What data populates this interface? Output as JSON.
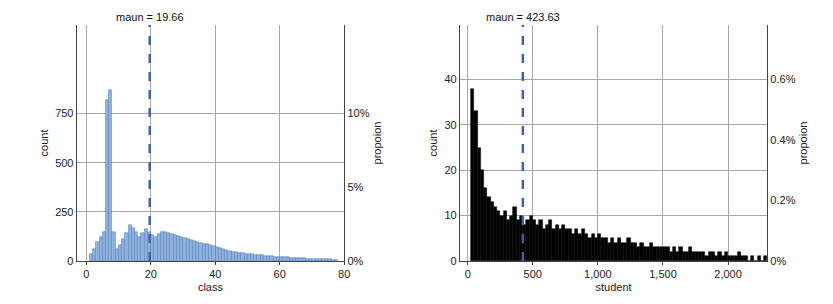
{
  "chart_data": [
    {
      "type": "histogram",
      "xlabel": "class",
      "ylabel": "count",
      "y2label": "propoion",
      "bins": [
        1,
        2,
        3,
        4,
        5,
        6,
        7,
        8,
        9,
        10,
        11,
        12,
        13,
        14,
        15,
        16,
        17,
        18,
        19,
        20,
        21,
        22,
        23,
        24,
        25,
        26,
        27,
        28,
        29,
        30,
        31,
        32,
        33,
        34,
        35,
        36,
        37,
        38,
        39,
        40,
        41,
        42,
        43,
        44,
        45,
        46,
        47,
        48,
        49,
        50,
        51,
        52,
        53,
        54,
        55,
        56,
        57,
        58,
        59,
        60,
        61,
        62,
        63,
        64,
        65,
        66,
        67,
        68,
        69,
        70,
        71,
        72,
        73,
        74,
        75,
        76,
        77,
        78
      ],
      "counts": [
        35,
        60,
        95,
        120,
        145,
        820,
        870,
        150,
        60,
        80,
        110,
        140,
        185,
        170,
        150,
        120,
        140,
        165,
        150,
        130,
        120,
        135,
        150,
        145,
        140,
        135,
        130,
        125,
        120,
        118,
        112,
        108,
        100,
        95,
        92,
        88,
        85,
        80,
        78,
        72,
        68,
        62,
        58,
        52,
        48,
        45,
        42,
        40,
        38,
        36,
        34,
        32,
        30,
        28,
        26,
        25,
        24,
        22,
        21,
        20,
        19,
        18,
        17,
        16,
        15,
        14,
        13,
        12,
        11,
        10,
        10,
        9,
        9,
        8,
        8,
        7,
        7
      ],
      "color": "#8fb2df",
      "xlim": [
        -3,
        80
      ],
      "xticks": [
        0,
        20,
        40,
        60,
        80
      ],
      "ylim": [
        0,
        1200
      ],
      "yticks": [
        0,
        250,
        500,
        750
      ],
      "y2lim": [
        0,
        16
      ],
      "y2ticks": [
        {
          "value": 0,
          "label": "0%"
        },
        {
          "value": 5,
          "label": "5%"
        },
        {
          "value": 10,
          "label": "10%"
        }
      ],
      "grid": true,
      "annotations": [
        {
          "x": 19.66,
          "text": "maun = 19.66",
          "color": "#3d62a8",
          "line_style": "dashed"
        }
      ]
    },
    {
      "type": "histogram",
      "xlabel": "student",
      "ylabel": "count",
      "y2label": "propoion",
      "bins": [
        25,
        50,
        75,
        100,
        125,
        150,
        175,
        200,
        225,
        250,
        275,
        300,
        325,
        350,
        375,
        400,
        425,
        450,
        475,
        500,
        525,
        550,
        575,
        600,
        625,
        650,
        675,
        700,
        725,
        750,
        775,
        800,
        825,
        850,
        875,
        900,
        925,
        950,
        975,
        1000,
        1025,
        1050,
        1075,
        1100,
        1125,
        1150,
        1175,
        1200,
        1225,
        1250,
        1275,
        1300,
        1325,
        1350,
        1375,
        1400,
        1425,
        1450,
        1475,
        1500,
        1525,
        1550,
        1575,
        1600,
        1625,
        1650,
        1675,
        1700,
        1725,
        1750,
        1775,
        1800,
        1825,
        1850,
        1875,
        1900,
        1925,
        1950,
        1975,
        2000,
        2025,
        2050,
        2075,
        2100,
        2125,
        2150,
        2175,
        2200,
        2225,
        2250,
        2275,
        2300
      ],
      "counts": [
        38,
        33,
        25,
        20,
        16,
        14,
        13,
        12,
        11,
        10,
        11,
        9,
        10,
        12,
        9,
        10,
        8,
        9,
        10,
        9,
        8,
        9,
        7,
        8,
        9,
        7,
        8,
        7,
        8,
        7,
        7,
        6,
        7,
        6,
        7,
        6,
        5,
        6,
        5,
        6,
        5,
        5,
        4,
        5,
        4,
        5,
        4,
        4,
        5,
        4,
        4,
        3,
        4,
        3,
        3,
        4,
        3,
        3,
        3,
        3,
        3,
        2,
        3,
        2,
        3,
        2,
        2,
        3,
        2,
        2,
        2,
        2,
        1,
        2,
        2,
        1,
        2,
        1,
        2,
        1,
        1,
        1,
        2,
        1,
        1,
        0,
        1,
        0,
        1,
        0,
        1
      ],
      "color": "#000000",
      "xlim": [
        -60,
        2300
      ],
      "xticks": [
        0,
        500,
        {
          "value": 1000,
          "label": "1,000"
        },
        {
          "value": 1500,
          "label": "1,500"
        },
        {
          "value": 2000,
          "label": "2,000"
        }
      ],
      "ylim": [
        0,
        52
      ],
      "yticks": [
        0,
        10,
        20,
        30,
        40
      ],
      "y2lim": [
        0,
        0.78
      ],
      "y2ticks": [
        {
          "value": 0,
          "label": "0%"
        },
        {
          "value": 0.2,
          "label": "0.2%"
        },
        {
          "value": 0.4,
          "label": "0.4%"
        },
        {
          "value": 0.6,
          "label": "0.6%"
        }
      ],
      "grid": true,
      "annotations": [
        {
          "x": 423.63,
          "text": "maun = 423.63",
          "color": "#3d62a8",
          "line_style": "dashed"
        }
      ]
    }
  ]
}
